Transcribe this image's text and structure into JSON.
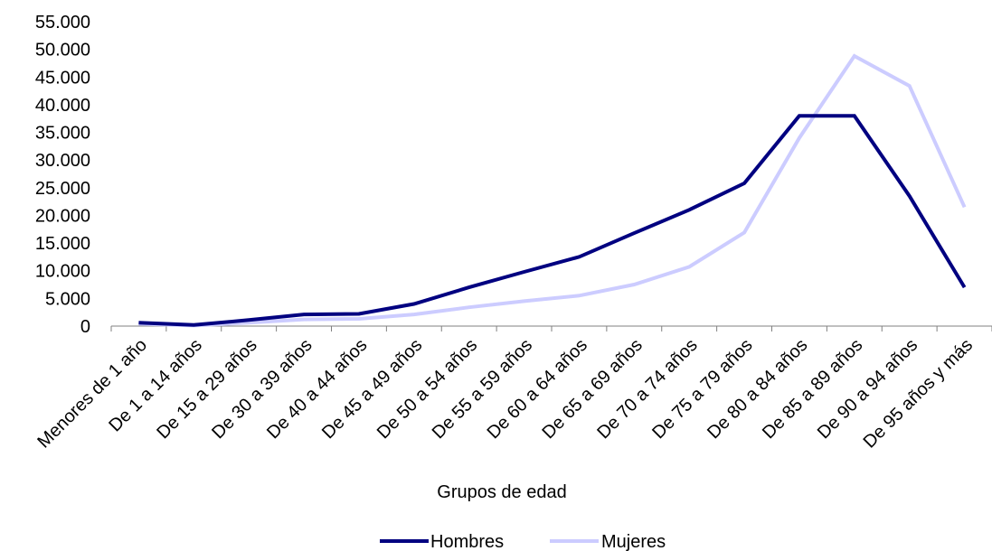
{
  "chart_data": {
    "type": "line",
    "title": "",
    "xlabel": "Grupos de edad",
    "ylabel": "",
    "ylim": [
      0,
      55000
    ],
    "yticks": [
      "0",
      "5.000",
      "10.000",
      "15.000",
      "20.000",
      "25.000",
      "30.000",
      "35.000",
      "40.000",
      "45.000",
      "50.000",
      "55.000"
    ],
    "ytick_values": [
      0,
      5000,
      10000,
      15000,
      20000,
      25000,
      30000,
      35000,
      40000,
      45000,
      50000,
      55000
    ],
    "grid": false,
    "legend_position": "bottom",
    "categories": [
      "Menores de 1 año",
      "De 1 a 14 años",
      "De 15 a 29 años",
      "De 30 a 39 años",
      "De 40 a 44 años",
      "De 45 a 49 años",
      "De 50 a 54 años",
      "De 55 a 59 años",
      "De 60 a 64 años",
      "De 65 a 69 años",
      "De 70 a 74 años",
      "De 75 a 79 años",
      "De 80 a 84 años",
      "De 85 a 89 años",
      "De 90 a 94 años",
      "De 95 años y más"
    ],
    "series": [
      {
        "name": "Hombres",
        "color": "#000080",
        "values": [
          600,
          200,
          1100,
          2100,
          2200,
          4000,
          7000,
          9800,
          12500,
          16800,
          21000,
          25800,
          38000,
          38000,
          23500,
          7000
        ]
      },
      {
        "name": "Mujeres",
        "color": "#ccccff",
        "values": [
          400,
          100,
          600,
          1200,
          1300,
          2100,
          3400,
          4500,
          5500,
          7500,
          10700,
          16900,
          34000,
          48800,
          43400,
          21500
        ]
      }
    ]
  }
}
